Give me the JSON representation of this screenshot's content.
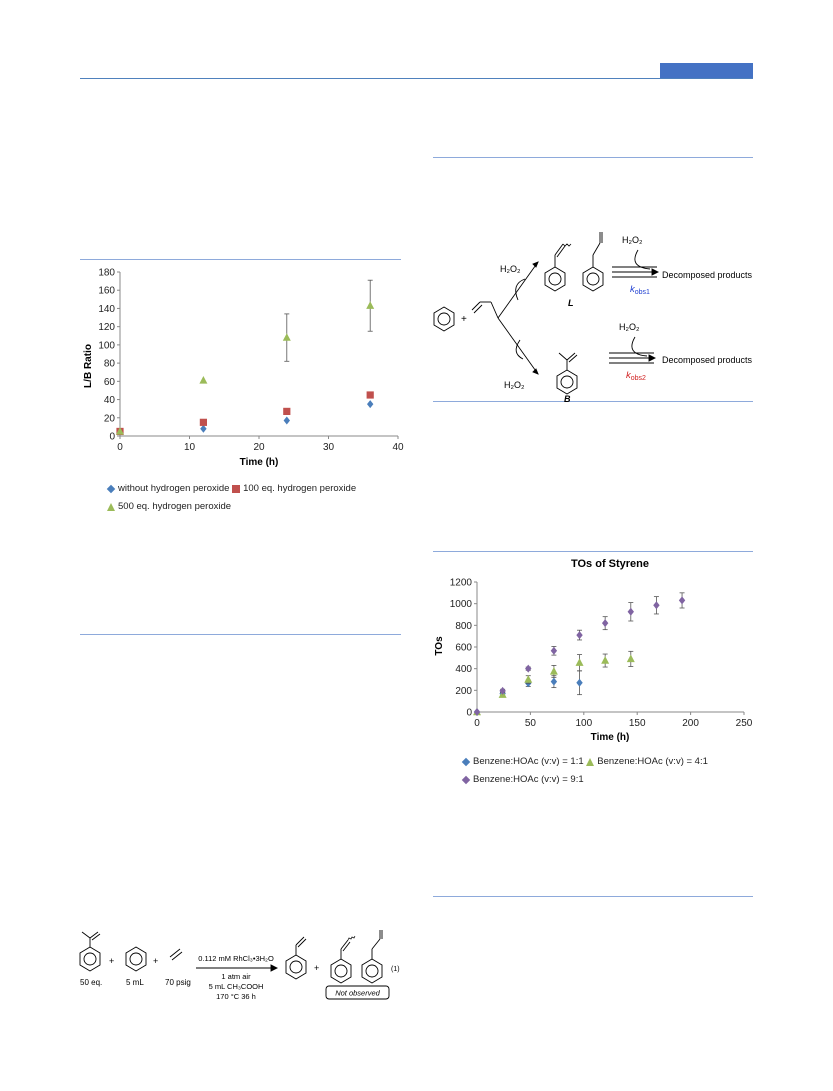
{
  "chart_data": [
    {
      "type": "scatter",
      "title": "",
      "xlabel": "Time (h)",
      "ylabel": "L/B Ratio",
      "xlim": [
        0,
        40
      ],
      "ylim": [
        0,
        180
      ],
      "xticks": [
        0,
        10,
        20,
        30,
        40
      ],
      "yticks": [
        0,
        20,
        40,
        60,
        80,
        100,
        120,
        140,
        160,
        180
      ],
      "grid": false,
      "legend_position": "bottom",
      "series": [
        {
          "name": "without hydrogen peroxide",
          "color": "#4a7ebb",
          "marker": "diamond",
          "points": [
            {
              "x": 0,
              "y": 5
            },
            {
              "x": 12,
              "y": 8
            },
            {
              "x": 24,
              "y": 17
            },
            {
              "x": 36,
              "y": 35
            }
          ]
        },
        {
          "name": "100 eq. hydrogen peroxide",
          "color": "#c0504d",
          "marker": "square",
          "points": [
            {
              "x": 0,
              "y": 5
            },
            {
              "x": 12,
              "y": 15
            },
            {
              "x": 24,
              "y": 27
            },
            {
              "x": 36,
              "y": 45
            }
          ]
        },
        {
          "name": "500 eq. hydrogen peroxide",
          "color": "#9bbb59",
          "marker": "triangle",
          "points": [
            {
              "x": 0,
              "y": 5
            },
            {
              "x": 12,
              "y": 61
            },
            {
              "x": 24,
              "y": 108,
              "err": 26
            },
            {
              "x": 36,
              "y": 143,
              "err": 28
            }
          ]
        }
      ]
    },
    {
      "type": "scatter",
      "title": "TOs of Styrene",
      "xlabel": "Time (h)",
      "ylabel": "TOs",
      "xlim": [
        0,
        250
      ],
      "ylim": [
        0,
        1200
      ],
      "xticks": [
        0,
        50,
        100,
        150,
        200,
        250
      ],
      "yticks": [
        0,
        200,
        400,
        600,
        800,
        1000,
        1200
      ],
      "grid": false,
      "legend_position": "bottom",
      "series": [
        {
          "name": "Benzene:HOAc (v:v) = 1:1",
          "color": "#4a7ebb",
          "marker": "diamond",
          "points": [
            {
              "x": 0,
              "y": 0
            },
            {
              "x": 24,
              "y": 170,
              "err": 20
            },
            {
              "x": 48,
              "y": 265,
              "err": 30
            },
            {
              "x": 72,
              "y": 280,
              "err": 55
            },
            {
              "x": 96,
              "y": 270,
              "err": 110
            }
          ]
        },
        {
          "name": "Benzene:HOAc (v:v) = 4:1",
          "color": "#9bbb59",
          "marker": "triangle",
          "points": [
            {
              "x": 0,
              "y": 0
            },
            {
              "x": 24,
              "y": 160,
              "err": 20
            },
            {
              "x": 48,
              "y": 300,
              "err": 35
            },
            {
              "x": 72,
              "y": 375,
              "err": 55
            },
            {
              "x": 96,
              "y": 455,
              "err": 75
            },
            {
              "x": 120,
              "y": 475,
              "err": 60
            },
            {
              "x": 144,
              "y": 490,
              "err": 70
            }
          ]
        },
        {
          "name": "Benzene:HOAc (v:v) = 9:1",
          "color": "#8064a2",
          "marker": "diamond",
          "points": [
            {
              "x": 0,
              "y": 0
            },
            {
              "x": 24,
              "y": 195,
              "err": 15
            },
            {
              "x": 48,
              "y": 400,
              "err": 15
            },
            {
              "x": 72,
              "y": 565,
              "err": 40
            },
            {
              "x": 96,
              "y": 710,
              "err": 45
            },
            {
              "x": 120,
              "y": 820,
              "err": 60
            },
            {
              "x": 144,
              "y": 925,
              "err": 85
            },
            {
              "x": 168,
              "y": 985,
              "err": 80
            },
            {
              "x": 192,
              "y": 1030,
              "err": 70
            }
          ]
        }
      ]
    }
  ],
  "scheme1": {
    "h2o2_a": "H₂O₂",
    "h2o2_b": "H₂O₂",
    "h2o2_c": "H₂O₂",
    "h2o2_d": "H₂O₂",
    "decomp_top": "Decomposed products",
    "decomp_bottom": "Decomposed products",
    "k1_sym": "k",
    "k1_sub": "obs1",
    "k2_sym": "k",
    "k2_sub": "obs2",
    "label_L": "L",
    "label_B": "B",
    "plus": "+",
    "k1_color": "#1f3fd1",
    "k2_color": "#d11f1f"
  },
  "eq1": {
    "reactant1": "50 eq.",
    "reactant2": "5 mL",
    "reactant3": "70 psig",
    "cond_line1": "0.112 mM RhCl₃•3H₂O",
    "cond_line2": "1 atm air",
    "cond_line3": "5 mL CH₃COOH",
    "cond_line4": "170 °C  36 h",
    "not_observed": "Not observed",
    "eq_number": "(1)",
    "plus1": "+",
    "plus2": "+",
    "plus3": "+"
  }
}
